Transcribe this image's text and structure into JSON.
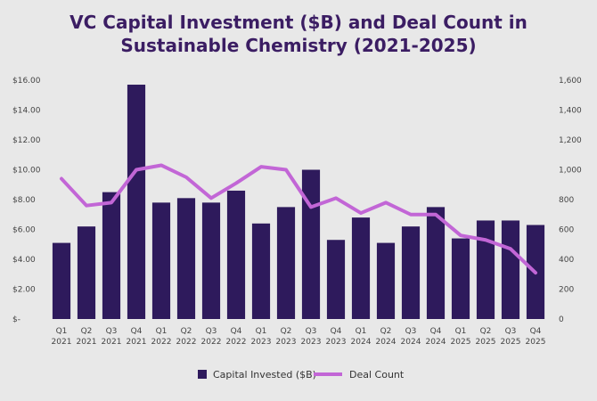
{
  "chart_data": {
    "type": "bar",
    "title_line1": "VC Capital Investment ($B) and Deal Count in",
    "title_line2": "Sustainable Chemistry (2021-2025)",
    "categories": [
      [
        "Q1",
        "2021"
      ],
      [
        "Q2",
        "2021"
      ],
      [
        "Q3",
        "2021"
      ],
      [
        "Q4",
        "2021"
      ],
      [
        "Q1",
        "2022"
      ],
      [
        "Q2",
        "2022"
      ],
      [
        "Q3",
        "2022"
      ],
      [
        "Q4",
        "2022"
      ],
      [
        "Q1",
        "2023"
      ],
      [
        "Q2",
        "2023"
      ],
      [
        "Q3",
        "2023"
      ],
      [
        "Q4",
        "2023"
      ],
      [
        "Q1",
        "2024"
      ],
      [
        "Q2",
        "2024"
      ],
      [
        "Q3",
        "2024"
      ],
      [
        "Q4",
        "2024"
      ],
      [
        "Q1",
        "2025"
      ],
      [
        "Q2",
        "2025"
      ],
      [
        "Q3",
        "2025"
      ],
      [
        "Q4",
        "2025"
      ]
    ],
    "series": [
      {
        "name": "Capital Invested ($B)",
        "type": "bar",
        "axis": "left",
        "color": "#2e1a5c",
        "values": [
          5.1,
          6.2,
          8.5,
          15.7,
          7.8,
          8.1,
          7.8,
          8.6,
          6.4,
          7.5,
          10.0,
          5.3,
          6.8,
          5.1,
          6.2,
          7.5,
          5.4,
          6.6,
          6.6,
          6.3
        ]
      },
      {
        "name": "Deal Count",
        "type": "line",
        "axis": "right",
        "color": "#c266d6",
        "values": [
          940,
          760,
          780,
          1000,
          1030,
          950,
          810,
          910,
          1020,
          1000,
          750,
          810,
          710,
          780,
          700,
          700,
          560,
          530,
          470,
          310
        ]
      }
    ],
    "y_left": {
      "min": 0,
      "max": 16,
      "step": 2,
      "tick_labels": [
        "$-",
        "$2.00",
        "$4.00",
        "$6.00",
        "$8.00",
        "$10.00",
        "$12.00",
        "$14.00",
        "$16.00"
      ]
    },
    "y_right": {
      "min": 0,
      "max": 1600,
      "step": 200,
      "tick_labels": [
        "0",
        "200",
        "400",
        "600",
        "800",
        "1,000",
        "1,200",
        "1,400",
        "1,600"
      ]
    },
    "grid": false,
    "legend_position": "bottom"
  }
}
